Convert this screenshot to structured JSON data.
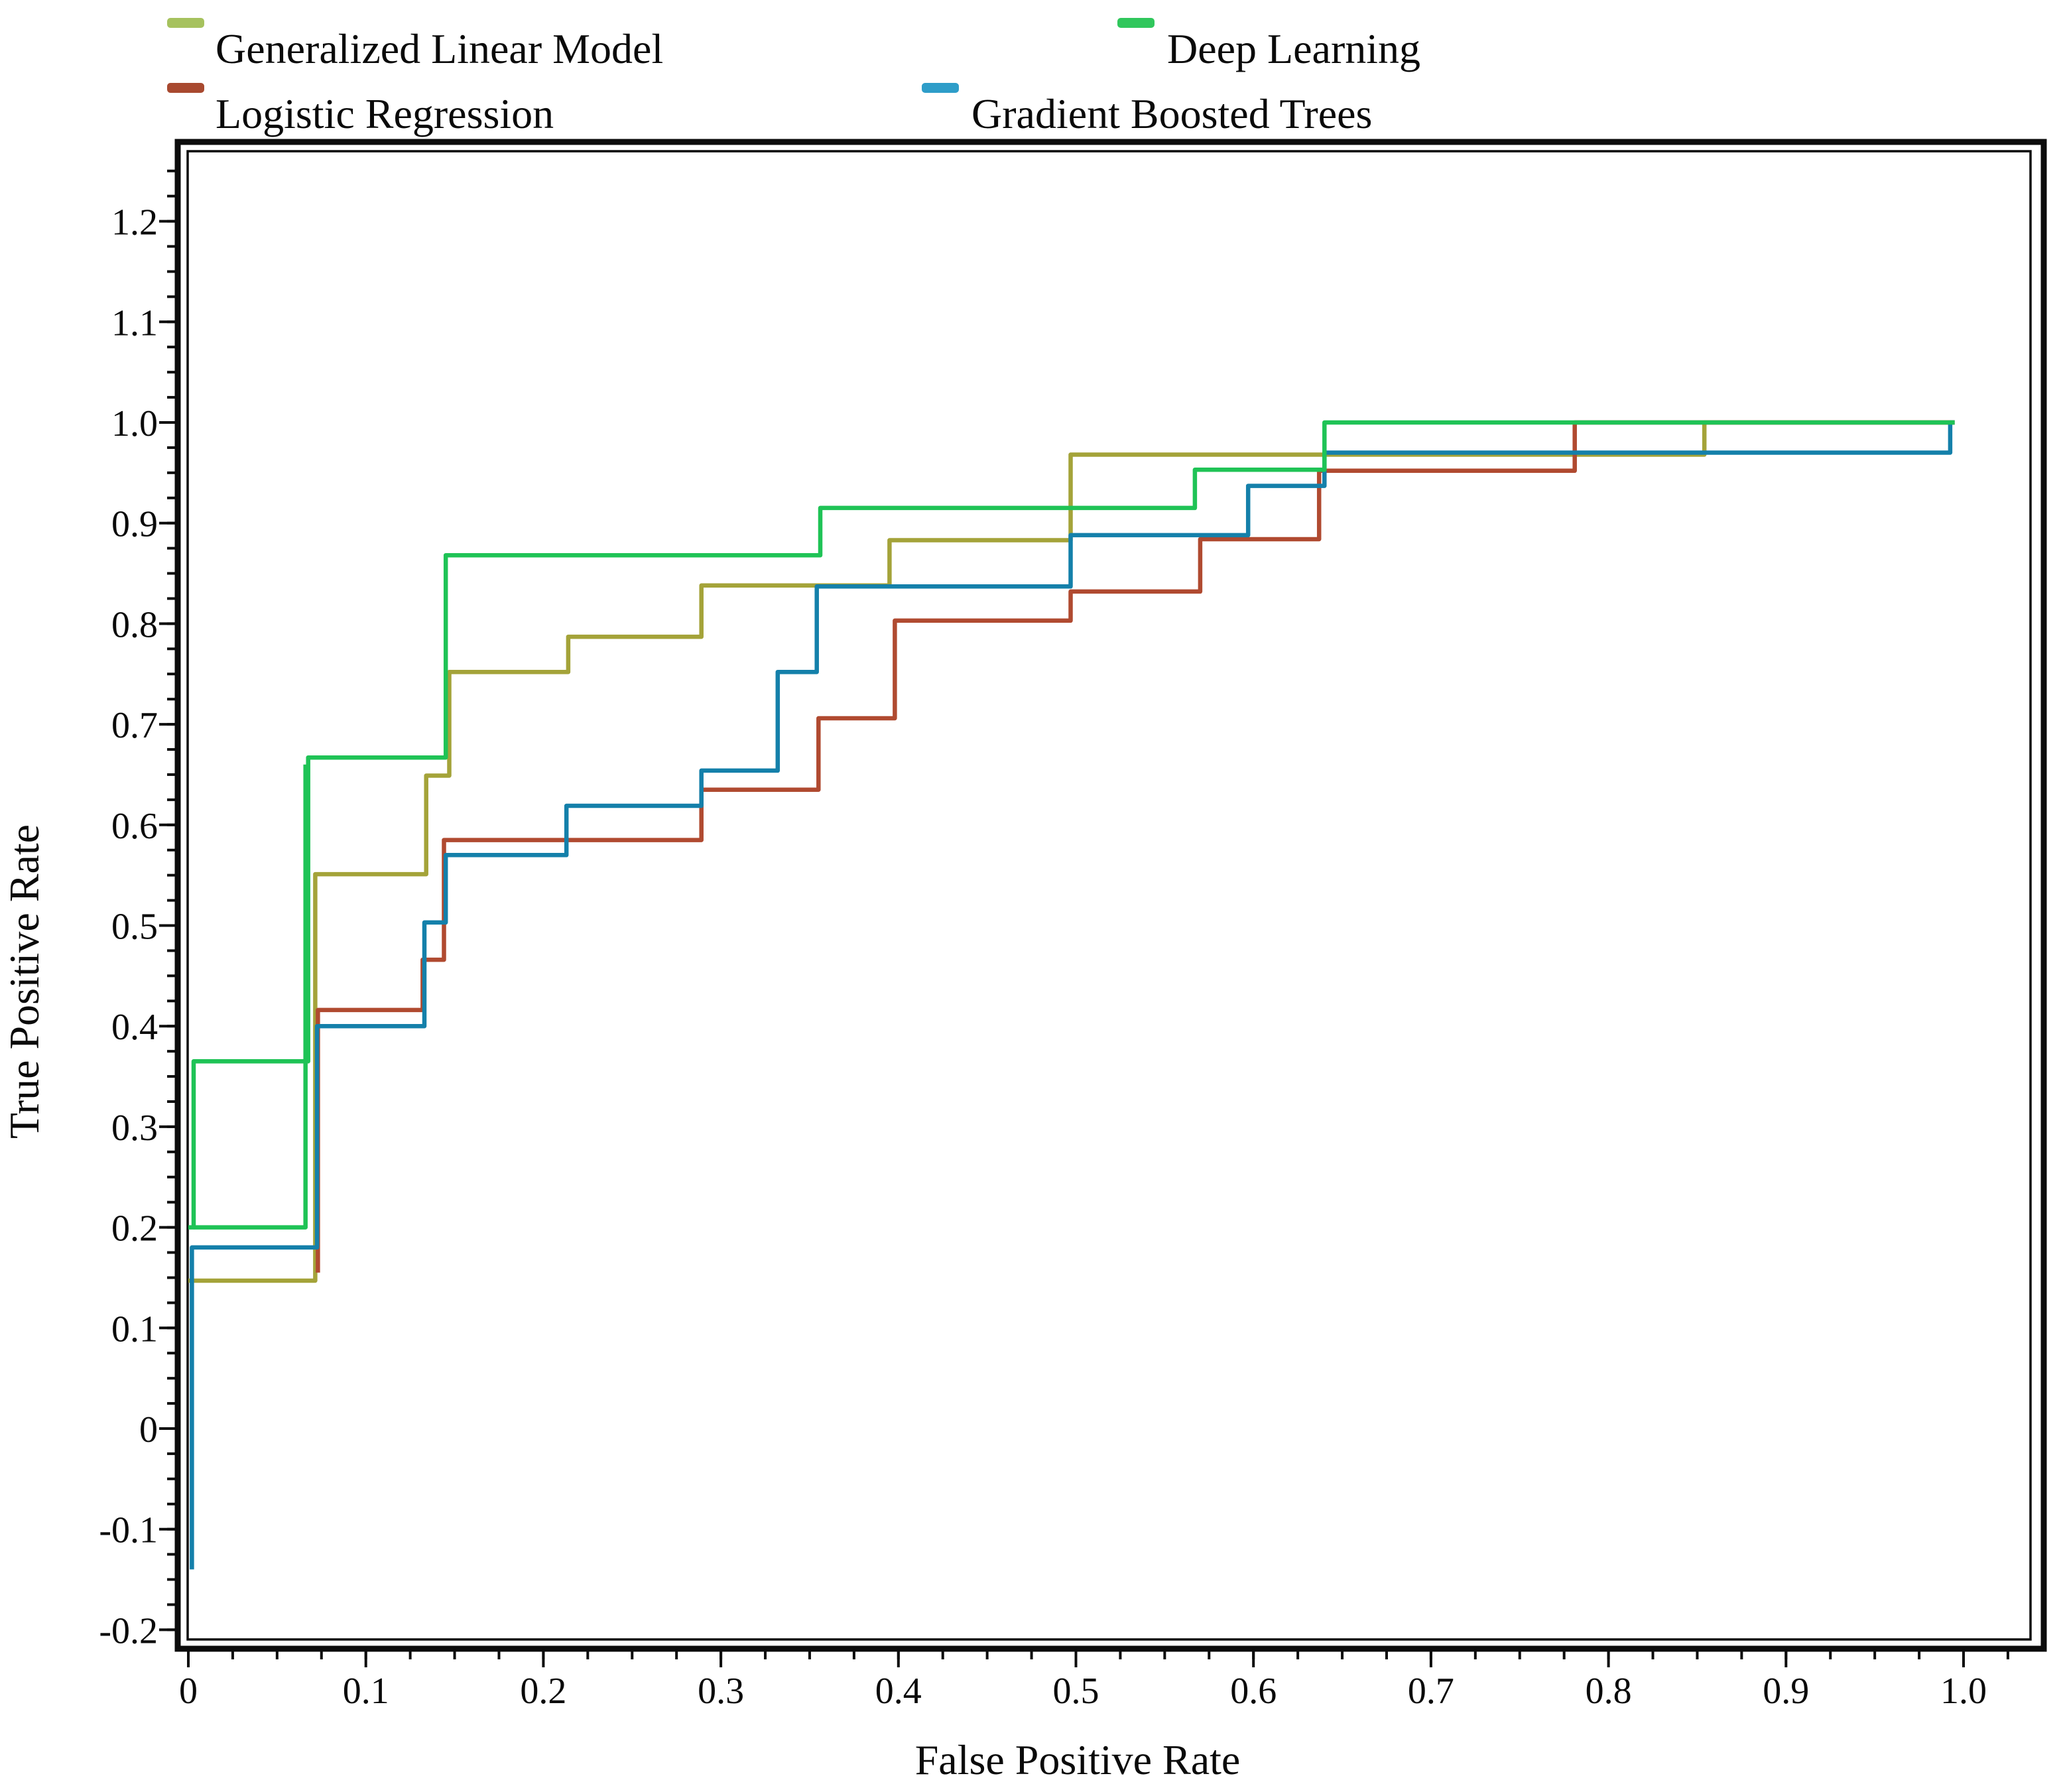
{
  "chart_data": {
    "type": "line",
    "step": true,
    "title": "",
    "xlabel": "False Positive Rate",
    "ylabel": "True Positive Rate",
    "xlim": [
      0,
      1.04
    ],
    "ylim": [
      -0.2,
      1.2
    ],
    "grid": false,
    "legend_position": "top",
    "x_ticks": {
      "values": [
        0,
        0.1,
        0.2,
        0.3,
        0.4,
        0.5,
        0.6,
        0.7,
        0.8,
        0.9,
        1.0
      ],
      "labels": [
        "0",
        "0.1",
        "0.2",
        "0.3",
        "0.4",
        "0.5",
        "0.6",
        "0.7",
        "0.8",
        "0.9",
        "1.0"
      ],
      "minor_step": 0.025
    },
    "y_ticks": {
      "values": [
        1.2,
        1.1,
        1.0,
        0.9,
        0.8,
        0.7,
        0.6,
        0.5,
        0.4,
        0.3,
        0.2,
        0.1,
        0,
        -0.1,
        -0.2
      ],
      "labels": [
        "1.2",
        "1.1",
        "1.0",
        "0.9",
        "0.8",
        "0.7",
        "0.6",
        "0.5",
        "0.4",
        "0.3",
        "0.2",
        "0.1",
        "0",
        "-0.1",
        "-0.2"
      ],
      "minor_step": 0.025
    },
    "series": [
      {
        "name": "Generalized Linear Model",
        "color": "#a4a339",
        "legend_color": "#a6c25e",
        "points": [
          [
            0,
            0.147
          ],
          [
            0.0715,
            0.147
          ],
          [
            0.0715,
            0.551
          ],
          [
            0.134,
            0.551
          ],
          [
            0.134,
            0.649
          ],
          [
            0.147,
            0.649
          ],
          [
            0.147,
            0.752
          ],
          [
            0.214,
            0.752
          ],
          [
            0.214,
            0.787
          ],
          [
            0.289,
            0.787
          ],
          [
            0.289,
            0.838
          ],
          [
            0.395,
            0.838
          ],
          [
            0.395,
            0.883
          ],
          [
            0.497,
            0.883
          ],
          [
            0.497,
            0.968
          ],
          [
            0.854,
            0.968
          ],
          [
            0.854,
            1.0
          ],
          [
            0.995,
            1.0
          ]
        ]
      },
      {
        "name": "Logistic Regression",
        "color": "#b04a30",
        "legend_color": "#a8492f",
        "points": [
          [
            0.073,
            0.155
          ],
          [
            0.073,
            0.416
          ],
          [
            0.132,
            0.416
          ],
          [
            0.132,
            0.466
          ],
          [
            0.144,
            0.466
          ],
          [
            0.144,
            0.585
          ],
          [
            0.289,
            0.585
          ],
          [
            0.289,
            0.635
          ],
          [
            0.355,
            0.635
          ],
          [
            0.355,
            0.706
          ],
          [
            0.398,
            0.706
          ],
          [
            0.398,
            0.803
          ],
          [
            0.497,
            0.803
          ],
          [
            0.497,
            0.832
          ],
          [
            0.57,
            0.832
          ],
          [
            0.57,
            0.884
          ],
          [
            0.637,
            0.884
          ],
          [
            0.637,
            0.952
          ],
          [
            0.781,
            0.952
          ],
          [
            0.781,
            1.0
          ],
          [
            0.995,
            1.0
          ]
        ]
      },
      {
        "name": "Gradient Boosted Trees",
        "color": "#1480aa",
        "legend_color": "#2e9dc9",
        "points": [
          [
            0.002,
            -0.14
          ],
          [
            0.002,
            0.18
          ],
          [
            0.0725,
            0.18
          ],
          [
            0.0725,
            0.4
          ],
          [
            0.133,
            0.4
          ],
          [
            0.133,
            0.503
          ],
          [
            0.145,
            0.503
          ],
          [
            0.145,
            0.57
          ],
          [
            0.213,
            0.57
          ],
          [
            0.213,
            0.619
          ],
          [
            0.289,
            0.619
          ],
          [
            0.289,
            0.654
          ],
          [
            0.332,
            0.654
          ],
          [
            0.332,
            0.752
          ],
          [
            0.354,
            0.752
          ],
          [
            0.354,
            0.837
          ],
          [
            0.497,
            0.837
          ],
          [
            0.497,
            0.888
          ],
          [
            0.597,
            0.888
          ],
          [
            0.597,
            0.937
          ],
          [
            0.64,
            0.937
          ],
          [
            0.64,
            0.97
          ],
          [
            0.9925,
            0.97
          ],
          [
            0.9925,
            1.0
          ],
          [
            0.995,
            1.0
          ]
        ]
      },
      {
        "name": "Deep Learning",
        "color": "#1fc356",
        "legend_color": "#30c75c",
        "points": [
          [
            0,
            0.2
          ],
          [
            0.003,
            0.2
          ],
          [
            0.003,
            0.365
          ],
          [
            0.0675,
            0.365
          ],
          [
            0.0675,
            0.667
          ],
          [
            0.145,
            0.667
          ],
          [
            0.145,
            0.868
          ],
          [
            0.356,
            0.868
          ],
          [
            0.356,
            0.915
          ],
          [
            0.567,
            0.915
          ],
          [
            0.567,
            0.953
          ],
          [
            0.64,
            0.953
          ],
          [
            0.64,
            1.0
          ],
          [
            0.995,
            1.0
          ]
        ],
        "extra_points": [
          [
            0.003,
            0.2
          ],
          [
            0.066,
            0.2
          ],
          [
            0.066,
            0.66
          ]
        ]
      }
    ]
  }
}
